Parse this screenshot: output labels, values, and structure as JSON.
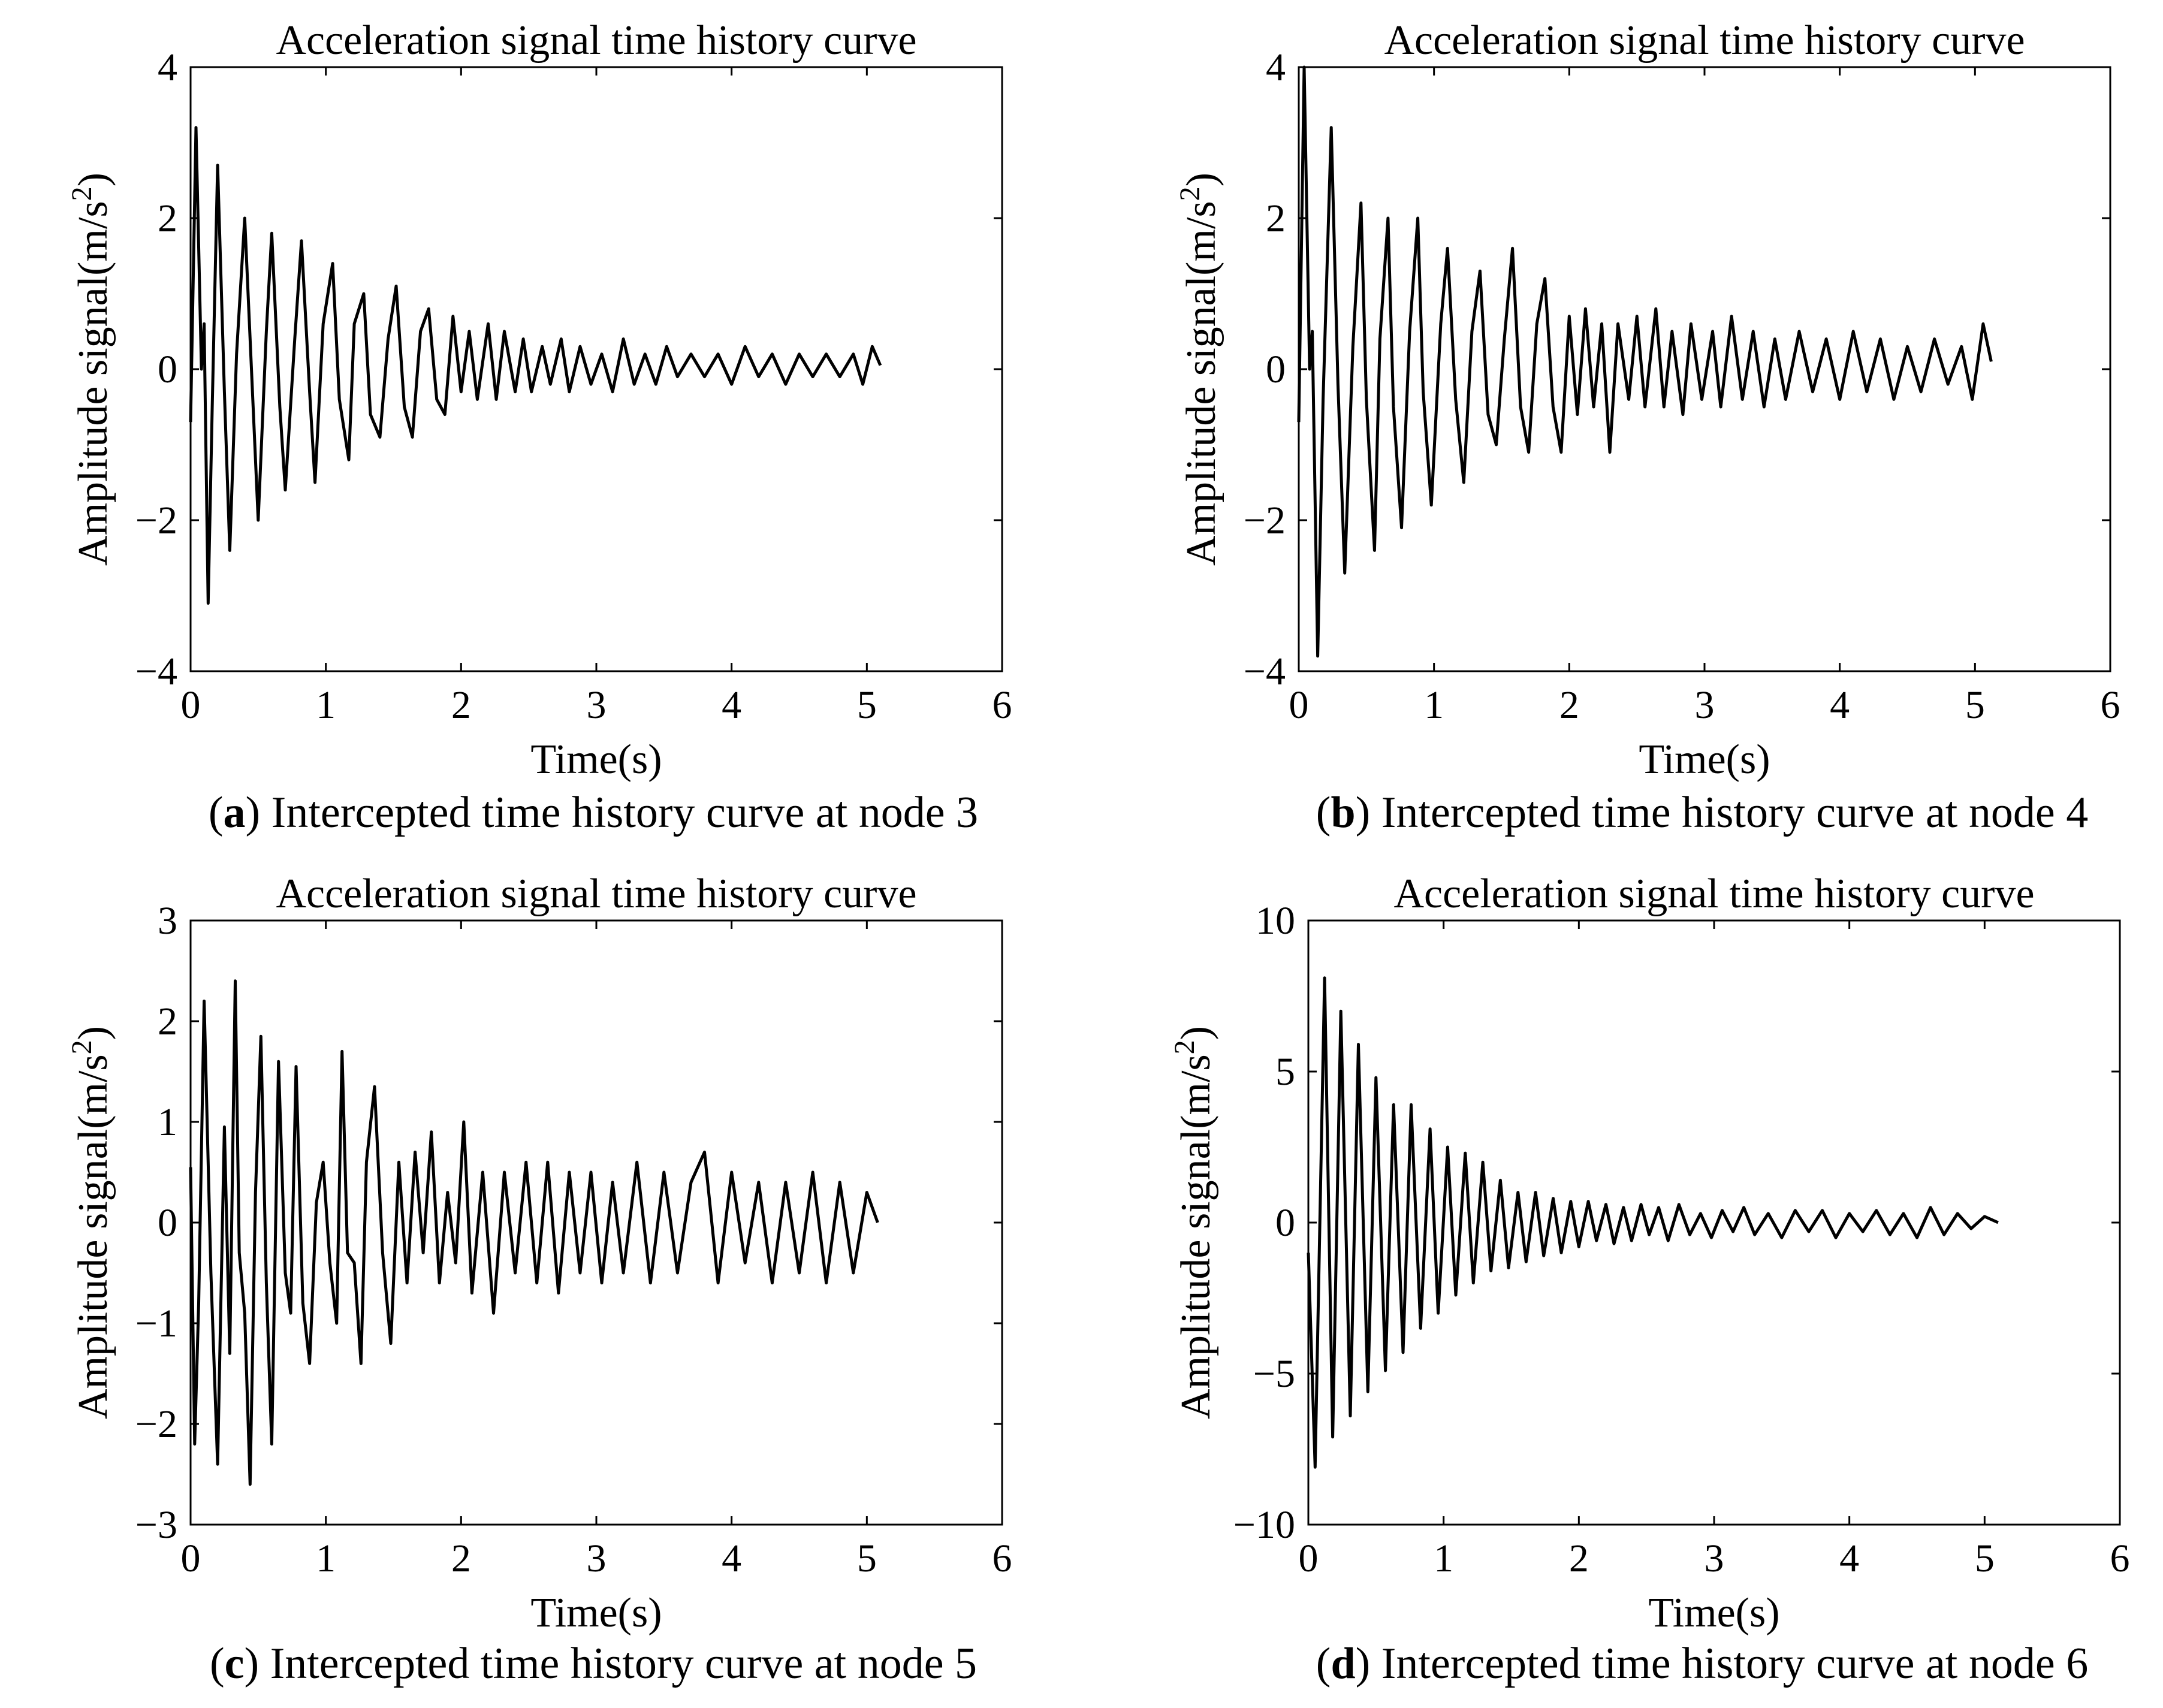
{
  "chart_data": [
    {
      "type": "line",
      "title": "Acceleration signal time history curve",
      "xlabel": "Time(s)",
      "ylabel": "Amplitude signal(m/s2)",
      "caption_letter": "a",
      "caption_text": "Intercepted time history curve at node 3",
      "xlim": [
        0,
        6
      ],
      "ylim": [
        -4,
        4
      ],
      "xticks": [
        "0",
        "1",
        "2",
        "3",
        "4",
        "5",
        "6"
      ],
      "yticks": [
        "-4",
        "-2",
        "0",
        "2",
        "4"
      ],
      "series": [
        {
          "name": "node 3",
          "x": [
            0,
            0.04,
            0.08,
            0.1,
            0.13,
            0.16,
            0.2,
            0.25,
            0.29,
            0.34,
            0.4,
            0.46,
            0.5,
            0.56,
            0.6,
            0.66,
            0.7,
            0.77,
            0.82,
            0.88,
            0.92,
            0.98,
            1.05,
            1.1,
            1.17,
            1.21,
            1.28,
            1.33,
            1.4,
            1.46,
            1.52,
            1.58,
            1.64,
            1.7,
            1.76,
            1.82,
            1.88,
            1.94,
            2.0,
            2.06,
            2.12,
            2.2,
            2.26,
            2.32,
            2.4,
            2.46,
            2.52,
            2.6,
            2.66,
            2.74,
            2.8,
            2.88,
            2.96,
            3.04,
            3.12,
            3.2,
            3.28,
            3.36,
            3.44,
            3.52,
            3.6,
            3.7,
            3.8,
            3.9,
            4.0,
            4.1,
            4.2,
            4.3,
            4.4,
            4.5,
            4.6,
            4.7,
            4.8,
            4.9,
            4.97,
            5.04,
            5.1
          ],
          "y": [
            -0.7,
            3.2,
            0.0,
            0.6,
            -3.1,
            -0.5,
            2.7,
            -0.3,
            -2.4,
            0.2,
            2.0,
            -0.4,
            -2.0,
            0.5,
            1.8,
            -0.5,
            -1.6,
            0.4,
            1.7,
            -0.3,
            -1.5,
            0.6,
            1.4,
            -0.4,
            -1.2,
            0.6,
            1.0,
            -0.6,
            -0.9,
            0.4,
            1.1,
            -0.5,
            -0.9,
            0.5,
            0.8,
            -0.4,
            -0.6,
            0.7,
            -0.3,
            0.5,
            -0.4,
            0.6,
            -0.4,
            0.5,
            -0.3,
            0.4,
            -0.3,
            0.3,
            -0.2,
            0.4,
            -0.3,
            0.3,
            -0.2,
            0.2,
            -0.3,
            0.4,
            -0.2,
            0.2,
            -0.2,
            0.3,
            -0.1,
            0.2,
            -0.1,
            0.2,
            -0.2,
            0.3,
            -0.1,
            0.2,
            -0.2,
            0.2,
            -0.1,
            0.2,
            -0.1,
            0.2,
            -0.2,
            0.3,
            0.05
          ]
        }
      ]
    },
    {
      "type": "line",
      "title": "Acceleration signal time history curve",
      "xlabel": "Time(s)",
      "ylabel": "Amplitude signal(m/s2)",
      "caption_letter": "b",
      "caption_text": "Intercepted time history curve at node 4",
      "xlim": [
        0,
        6
      ],
      "ylim": [
        -4,
        4
      ],
      "xticks": [
        "0",
        "1",
        "2",
        "3",
        "4",
        "5",
        "6"
      ],
      "yticks": [
        "-4",
        "-2",
        "0",
        "2",
        "4"
      ],
      "series": [
        {
          "name": "node 4",
          "x": [
            0,
            0.04,
            0.08,
            0.1,
            0.14,
            0.18,
            0.24,
            0.29,
            0.34,
            0.4,
            0.46,
            0.5,
            0.56,
            0.6,
            0.66,
            0.7,
            0.76,
            0.82,
            0.88,
            0.92,
            0.98,
            1.05,
            1.1,
            1.16,
            1.22,
            1.28,
            1.34,
            1.4,
            1.46,
            1.52,
            1.58,
            1.64,
            1.7,
            1.76,
            1.82,
            1.88,
            1.94,
            2.0,
            2.06,
            2.12,
            2.18,
            2.24,
            2.3,
            2.36,
            2.44,
            2.5,
            2.56,
            2.64,
            2.7,
            2.76,
            2.84,
            2.9,
            2.98,
            3.06,
            3.12,
            3.2,
            3.28,
            3.36,
            3.44,
            3.52,
            3.6,
            3.7,
            3.8,
            3.9,
            4.0,
            4.1,
            4.2,
            4.3,
            4.4,
            4.5,
            4.6,
            4.7,
            4.8,
            4.9,
            4.98,
            5.06,
            5.12
          ],
          "y": [
            -0.7,
            4.0,
            0.0,
            0.5,
            -3.8,
            -0.4,
            3.2,
            -0.2,
            -2.7,
            0.3,
            2.2,
            -0.4,
            -2.4,
            0.4,
            2.0,
            -0.5,
            -2.1,
            0.5,
            2.0,
            -0.3,
            -1.8,
            0.6,
            1.6,
            -0.4,
            -1.5,
            0.5,
            1.3,
            -0.6,
            -1.0,
            0.4,
            1.6,
            -0.5,
            -1.1,
            0.6,
            1.2,
            -0.5,
            -1.1,
            0.7,
            -0.6,
            0.8,
            -0.5,
            0.6,
            -1.1,
            0.6,
            -0.4,
            0.7,
            -0.5,
            0.8,
            -0.5,
            0.5,
            -0.6,
            0.6,
            -0.4,
            0.5,
            -0.5,
            0.7,
            -0.4,
            0.5,
            -0.5,
            0.4,
            -0.4,
            0.5,
            -0.3,
            0.4,
            -0.4,
            0.5,
            -0.3,
            0.4,
            -0.4,
            0.3,
            -0.3,
            0.4,
            -0.2,
            0.3,
            -0.4,
            0.6,
            0.1
          ]
        }
      ]
    },
    {
      "type": "line",
      "title": "Acceleration signal time history curve",
      "xlabel": "Time(s)",
      "ylabel": "Amplitude signal(m/s2)",
      "caption_letter": "c",
      "caption_text": "Intercepted time history curve at node 5",
      "xlim": [
        0,
        6
      ],
      "ylim": [
        -3,
        3
      ],
      "xticks": [
        "0",
        "1",
        "2",
        "3",
        "4",
        "5",
        "6"
      ],
      "yticks": [
        "-3",
        "-2",
        "-1",
        "0",
        "1",
        "2",
        "3"
      ],
      "series": [
        {
          "name": "node 5",
          "x": [
            0,
            0.03,
            0.06,
            0.1,
            0.15,
            0.2,
            0.25,
            0.29,
            0.33,
            0.36,
            0.4,
            0.44,
            0.48,
            0.52,
            0.56,
            0.6,
            0.65,
            0.7,
            0.74,
            0.78,
            0.83,
            0.88,
            0.93,
            0.98,
            1.03,
            1.08,
            1.12,
            1.16,
            1.21,
            1.26,
            1.3,
            1.36,
            1.42,
            1.48,
            1.54,
            1.6,
            1.66,
            1.72,
            1.78,
            1.84,
            1.9,
            1.96,
            2.02,
            2.08,
            2.16,
            2.24,
            2.32,
            2.4,
            2.48,
            2.56,
            2.64,
            2.72,
            2.8,
            2.88,
            2.96,
            3.04,
            3.12,
            3.2,
            3.3,
            3.4,
            3.5,
            3.6,
            3.7,
            3.8,
            3.9,
            4.0,
            4.1,
            4.2,
            4.3,
            4.4,
            4.5,
            4.6,
            4.7,
            4.8,
            4.9,
            5.0,
            5.08
          ],
          "y": [
            0.55,
            -2.2,
            -0.8,
            2.2,
            -0.5,
            -2.4,
            0.95,
            -1.3,
            2.4,
            -0.3,
            -0.9,
            -2.6,
            0.3,
            1.85,
            -0.6,
            -2.2,
            1.6,
            -0.5,
            -0.9,
            1.55,
            -0.8,
            -1.4,
            0.2,
            0.6,
            -0.4,
            -1.0,
            1.7,
            -0.3,
            -0.4,
            -1.4,
            0.6,
            1.35,
            -0.3,
            -1.2,
            0.6,
            -0.6,
            0.7,
            -0.3,
            0.9,
            -0.6,
            0.3,
            -0.4,
            1.0,
            -0.7,
            0.5,
            -0.9,
            0.5,
            -0.5,
            0.6,
            -0.6,
            0.6,
            -0.7,
            0.5,
            -0.5,
            0.5,
            -0.6,
            0.4,
            -0.5,
            0.6,
            -0.6,
            0.5,
            -0.5,
            0.4,
            0.7,
            -0.6,
            0.5,
            -0.4,
            0.4,
            -0.6,
            0.4,
            -0.5,
            0.5,
            -0.6,
            0.4,
            -0.5,
            0.3,
            0.0
          ]
        }
      ]
    },
    {
      "type": "line",
      "title": "Acceleration signal time history curve",
      "xlabel": "Time(s)",
      "ylabel": "Amplitude signal(m/s2)",
      "caption_letter": "d",
      "caption_text": "Intercepted time history curve at node 6",
      "xlim": [
        0,
        6
      ],
      "ylim": [
        -10,
        10
      ],
      "xticks": [
        "0",
        "1",
        "2",
        "3",
        "4",
        "5",
        "6"
      ],
      "yticks": [
        "-10",
        "-5",
        "0",
        "5",
        "10"
      ],
      "series": [
        {
          "name": "node 6",
          "x": [
            0,
            0.05,
            0.12,
            0.18,
            0.24,
            0.31,
            0.37,
            0.44,
            0.5,
            0.57,
            0.63,
            0.7,
            0.76,
            0.83,
            0.9,
            0.96,
            1.03,
            1.09,
            1.16,
            1.22,
            1.29,
            1.35,
            1.42,
            1.48,
            1.55,
            1.61,
            1.68,
            1.74,
            1.81,
            1.87,
            1.94,
            2.0,
            2.07,
            2.13,
            2.2,
            2.26,
            2.33,
            2.39,
            2.46,
            2.52,
            2.59,
            2.66,
            2.74,
            2.82,
            2.9,
            2.98,
            3.06,
            3.14,
            3.22,
            3.3,
            3.4,
            3.5,
            3.6,
            3.7,
            3.8,
            3.9,
            4.0,
            4.1,
            4.2,
            4.3,
            4.4,
            4.5,
            4.6,
            4.7,
            4.8,
            4.9,
            5.0,
            5.1
          ],
          "y": [
            -1.0,
            -8.1,
            8.1,
            -7.1,
            7.0,
            -6.4,
            5.9,
            -5.6,
            4.8,
            -4.9,
            3.9,
            -4.3,
            3.9,
            -3.5,
            3.1,
            -3.0,
            2.5,
            -2.4,
            2.3,
            -2.0,
            2.0,
            -1.6,
            1.4,
            -1.5,
            1.0,
            -1.3,
            1.0,
            -1.1,
            0.8,
            -1.0,
            0.7,
            -0.8,
            0.7,
            -0.6,
            0.6,
            -0.7,
            0.5,
            -0.6,
            0.6,
            -0.4,
            0.5,
            -0.6,
            0.6,
            -0.4,
            0.3,
            -0.5,
            0.4,
            -0.3,
            0.5,
            -0.4,
            0.3,
            -0.5,
            0.4,
            -0.3,
            0.4,
            -0.5,
            0.3,
            -0.3,
            0.4,
            -0.4,
            0.3,
            -0.5,
            0.5,
            -0.4,
            0.3,
            -0.2,
            0.2,
            0.0
          ]
        }
      ]
    }
  ]
}
